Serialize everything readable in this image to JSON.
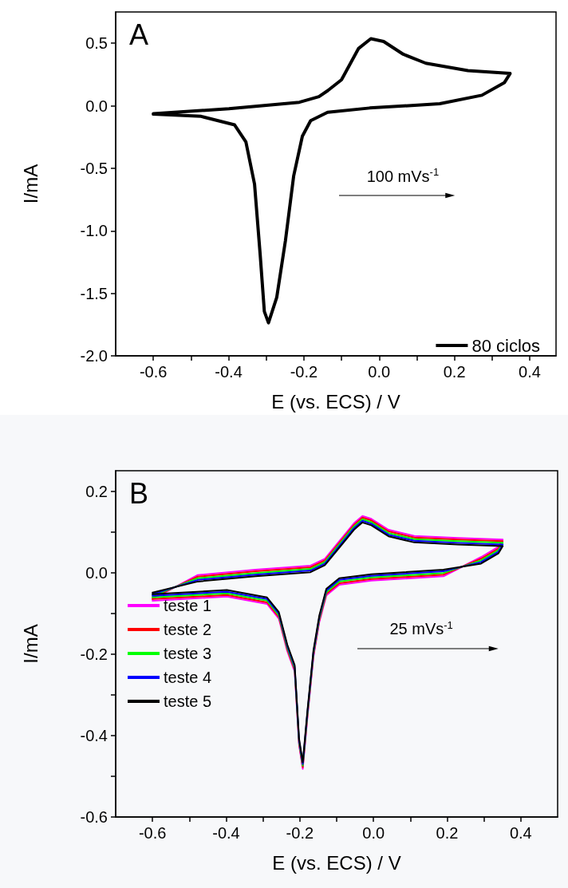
{
  "chart_data": [
    {
      "type": "line",
      "title": "A",
      "xlabel": "E (vs. ECS) / V",
      "ylabel": "I/mA",
      "annotations": [
        "100 mVs$^{-1}$"
      ],
      "xlim": [
        -0.7,
        0.47
      ],
      "ylim": [
        -2.0,
        0.75
      ],
      "xticks": [
        {
          "value": -0.6,
          "label": "-0.6"
        },
        {
          "value": -0.5,
          "label": null
        },
        {
          "value": -0.4,
          "label": "-0.4"
        },
        {
          "value": -0.3,
          "label": null
        },
        {
          "value": -0.2,
          "label": "-0.2"
        },
        {
          "value": -0.1,
          "label": null
        },
        {
          "value": 0,
          "label": "0.0"
        },
        {
          "value": 0.1,
          "label": null
        },
        {
          "value": 0.2,
          "label": "0.2"
        },
        {
          "value": 0.3,
          "label": null
        },
        {
          "value": 0.4,
          "label": "0.4"
        }
      ],
      "yticks": [
        {
          "value": -2,
          "label": "-2.0"
        },
        {
          "value": -1.5,
          "label": "-1.5"
        },
        {
          "value": -1,
          "label": "-1.0"
        },
        {
          "value": -0.5,
          "label": "-0.5"
        },
        {
          "value": 0,
          "label": "0.0"
        },
        {
          "value": 0.5,
          "label": "0.5"
        }
      ],
      "grid": false,
      "legend": "bottom right",
      "marker": "none",
      "line_style": "solid",
      "series": [
        {
          "name": "80 ciclos",
          "color": "#000000",
          "x": [
            -0.6,
            -0.399,
            -0.212,
            -0.16,
            -0.137,
            -0.1,
            -0.055,
            -0.022,
            0.012,
            0.064,
            0.124,
            0.236,
            0.348,
            0.333,
            0.273,
            0.161,
            -0.025,
            -0.137,
            -0.182,
            -0.204,
            -0.227,
            -0.249,
            -0.272,
            -0.294,
            -0.305,
            -0.316,
            -0.331,
            -0.354,
            -0.384,
            -0.473,
            -0.6
          ],
          "values": [
            -0.063,
            -0.024,
            0.028,
            0.073,
            0.12,
            0.208,
            0.457,
            0.536,
            0.514,
            0.412,
            0.34,
            0.281,
            0.258,
            0.186,
            0.084,
            0.016,
            -0.018,
            -0.052,
            -0.119,
            -0.244,
            -0.56,
            -1.08,
            -1.532,
            -1.736,
            -1.645,
            -1.193,
            -0.628,
            -0.289,
            -0.153,
            -0.085,
            -0.067
          ]
        }
      ]
    },
    {
      "type": "line",
      "title": "B",
      "xlabel": "E (vs. ECS) / V",
      "ylabel": "I/mA",
      "annotations": [
        "25 mVs$^{-1}$"
      ],
      "xlim": [
        -0.7,
        0.5
      ],
      "ylim": [
        -0.6,
        0.25
      ],
      "xticks": [
        {
          "value": -0.6,
          "label": "-0.6"
        },
        {
          "value": -0.5,
          "label": null
        },
        {
          "value": -0.4,
          "label": "-0.4"
        },
        {
          "value": -0.3,
          "label": null
        },
        {
          "value": -0.2,
          "label": "-0.2"
        },
        {
          "value": -0.1,
          "label": null
        },
        {
          "value": 0,
          "label": "0.0"
        },
        {
          "value": 0.1,
          "label": null
        },
        {
          "value": 0.2,
          "label": "0.2"
        },
        {
          "value": 0.3,
          "label": null
        },
        {
          "value": 0.4,
          "label": "0.4"
        }
      ],
      "yticks": [
        {
          "value": -0.6,
          "label": "-0.6"
        },
        {
          "value": -0.5,
          "label": null
        },
        {
          "value": -0.4,
          "label": "-0.4"
        },
        {
          "value": -0.3,
          "label": null
        },
        {
          "value": -0.2,
          "label": "-0.2"
        },
        {
          "value": -0.1,
          "label": null
        },
        {
          "value": 0,
          "label": "0.0"
        },
        {
          "value": 0.1,
          "label": null
        },
        {
          "value": 0.2,
          "label": "0.2"
        }
      ],
      "grid": false,
      "legend": "bottom left",
      "marker": "none",
      "line_style": "solid",
      "series": [
        {
          "name": "teste 1",
          "color": "#ff00ff",
          "x": [
            -0.6,
            -0.477,
            -0.32,
            -0.171,
            -0.132,
            -0.093,
            -0.053,
            -0.03,
            -0.006,
            0.041,
            0.111,
            0.229,
            0.351,
            0.339,
            0.292,
            0.19,
            -0.006,
            -0.093,
            -0.128,
            -0.147,
            -0.163,
            -0.179,
            -0.192,
            -0.202,
            -0.214,
            -0.234,
            -0.257,
            -0.289,
            -0.398,
            -0.6
          ],
          "values": [
            -0.065,
            -0.006,
            0.007,
            0.017,
            0.034,
            0.077,
            0.121,
            0.139,
            0.132,
            0.105,
            0.09,
            0.085,
            0.081,
            0.063,
            0.038,
            -0.009,
            -0.02,
            -0.03,
            -0.056,
            -0.121,
            -0.207,
            -0.352,
            -0.482,
            -0.424,
            -0.243,
            -0.193,
            -0.113,
            -0.077,
            -0.059,
            -0.069
          ]
        },
        {
          "name": "teste 2",
          "color": "#ff0000",
          "x": [
            -0.6,
            -0.477,
            -0.32,
            -0.171,
            -0.132,
            -0.093,
            -0.053,
            -0.03,
            -0.006,
            0.041,
            0.111,
            0.229,
            0.351,
            0.339,
            0.292,
            0.19,
            -0.006,
            -0.093,
            -0.128,
            -0.147,
            -0.163,
            -0.179,
            -0.192,
            -0.202,
            -0.214,
            -0.234,
            -0.257,
            -0.289,
            -0.398,
            -0.6
          ],
          "values": [
            -0.061,
            -0.01,
            0.003,
            0.013,
            0.03,
            0.073,
            0.117,
            0.135,
            0.128,
            0.101,
            0.086,
            0.081,
            0.077,
            0.059,
            0.034,
            -0.005,
            -0.016,
            -0.026,
            -0.052,
            -0.117,
            -0.203,
            -0.348,
            -0.478,
            -0.42,
            -0.239,
            -0.189,
            -0.109,
            -0.073,
            -0.055,
            -0.065
          ]
        },
        {
          "name": "teste 3",
          "color": "#00ff00",
          "x": [
            -0.6,
            -0.477,
            -0.32,
            -0.171,
            -0.132,
            -0.093,
            -0.053,
            -0.03,
            -0.006,
            0.041,
            0.111,
            0.229,
            0.351,
            0.339,
            0.292,
            0.19,
            -0.006,
            -0.093,
            -0.128,
            -0.147,
            -0.163,
            -0.179,
            -0.192,
            -0.202,
            -0.214,
            -0.234,
            -0.257,
            -0.289,
            -0.398,
            -0.6
          ],
          "values": [
            -0.057,
            -0.014,
            -0.001,
            0.009,
            0.026,
            0.069,
            0.113,
            0.131,
            0.124,
            0.097,
            0.082,
            0.077,
            0.073,
            0.055,
            0.03,
            -0.001,
            -0.012,
            -0.022,
            -0.048,
            -0.113,
            -0.199,
            -0.344,
            -0.474,
            -0.416,
            -0.235,
            -0.185,
            -0.105,
            -0.069,
            -0.051,
            -0.061
          ]
        },
        {
          "name": "teste 4",
          "color": "#0000ff",
          "x": [
            -0.6,
            -0.477,
            -0.32,
            -0.171,
            -0.132,
            -0.093,
            -0.053,
            -0.03,
            -0.006,
            0.041,
            0.111,
            0.229,
            0.351,
            0.339,
            0.292,
            0.19,
            -0.006,
            -0.093,
            -0.128,
            -0.147,
            -0.163,
            -0.179,
            -0.192,
            -0.202,
            -0.214,
            -0.234,
            -0.257,
            -0.289,
            -0.398,
            -0.6
          ],
          "values": [
            -0.053,
            -0.018,
            -0.005,
            0.005,
            0.022,
            0.065,
            0.109,
            0.127,
            0.12,
            0.093,
            0.078,
            0.073,
            0.069,
            0.051,
            0.026,
            0.003,
            -0.008,
            -0.018,
            -0.044,
            -0.109,
            -0.195,
            -0.34,
            -0.47,
            -0.412,
            -0.231,
            -0.181,
            -0.101,
            -0.065,
            -0.047,
            -0.057
          ]
        },
        {
          "name": "teste 5",
          "color": "#000000",
          "x": [
            -0.6,
            -0.477,
            -0.32,
            -0.171,
            -0.132,
            -0.093,
            -0.053,
            -0.03,
            -0.006,
            0.041,
            0.111,
            0.229,
            0.351,
            0.339,
            0.292,
            0.19,
            -0.006,
            -0.093,
            -0.128,
            -0.147,
            -0.163,
            -0.179,
            -0.192,
            -0.202,
            -0.214,
            -0.234,
            -0.257,
            -0.289,
            -0.398,
            -0.6
          ],
          "values": [
            -0.049,
            -0.022,
            -0.009,
            0.001,
            0.018,
            0.061,
            0.105,
            0.123,
            0.116,
            0.089,
            0.074,
            0.069,
            0.065,
            0.047,
            0.022,
            0.007,
            -0.004,
            -0.014,
            -0.04,
            -0.105,
            -0.191,
            -0.336,
            -0.466,
            -0.408,
            -0.227,
            -0.177,
            -0.097,
            -0.061,
            -0.043,
            -0.053
          ]
        }
      ]
    }
  ]
}
